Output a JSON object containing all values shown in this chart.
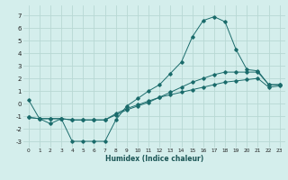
{
  "xlabel": "Humidex (Indice chaleur)",
  "bg_color": "#d4eeec",
  "grid_color": "#b8d8d4",
  "line_color": "#1a6b6b",
  "xlim": [
    -0.5,
    23.5
  ],
  "ylim": [
    -3.5,
    7.8
  ],
  "xticks": [
    0,
    1,
    2,
    3,
    4,
    5,
    6,
    7,
    8,
    9,
    10,
    11,
    12,
    13,
    14,
    15,
    16,
    17,
    18,
    19,
    20,
    21,
    22,
    23
  ],
  "yticks": [
    -3,
    -2,
    -1,
    0,
    1,
    2,
    3,
    4,
    5,
    6,
    7
  ],
  "line1_x": [
    0,
    1,
    2,
    3,
    4,
    5,
    6,
    7,
    8,
    9,
    10,
    11,
    12,
    13,
    14,
    15,
    16,
    17,
    18,
    19,
    20,
    21,
    22,
    23
  ],
  "line1_y": [
    0.3,
    -1.2,
    -1.6,
    -1.2,
    -3.0,
    -3.0,
    -3.0,
    -3.0,
    -1.3,
    -0.2,
    0.4,
    1.0,
    1.5,
    2.4,
    3.3,
    5.3,
    6.6,
    6.9,
    6.5,
    4.3,
    2.7,
    2.6,
    1.5,
    1.5
  ],
  "line2_x": [
    0,
    1,
    2,
    3,
    4,
    5,
    6,
    7,
    8,
    9,
    10,
    11,
    12,
    13,
    14,
    15,
    16,
    17,
    18,
    19,
    20,
    21,
    22,
    23
  ],
  "line2_y": [
    -1.1,
    -1.2,
    -1.2,
    -1.2,
    -1.3,
    -1.3,
    -1.3,
    -1.3,
    -0.9,
    -0.5,
    -0.2,
    0.1,
    0.5,
    0.9,
    1.3,
    1.7,
    2.0,
    2.3,
    2.5,
    2.5,
    2.5,
    2.5,
    1.5,
    1.5
  ],
  "line3_x": [
    0,
    1,
    2,
    3,
    4,
    5,
    6,
    7,
    8,
    9,
    10,
    11,
    12,
    13,
    14,
    15,
    16,
    17,
    18,
    19,
    20,
    21,
    22,
    23
  ],
  "line3_y": [
    -1.1,
    -1.2,
    -1.2,
    -1.2,
    -1.3,
    -1.3,
    -1.3,
    -1.3,
    -0.8,
    -0.4,
    -0.1,
    0.2,
    0.5,
    0.7,
    0.9,
    1.1,
    1.3,
    1.5,
    1.7,
    1.8,
    1.9,
    2.0,
    1.3,
    1.4
  ]
}
